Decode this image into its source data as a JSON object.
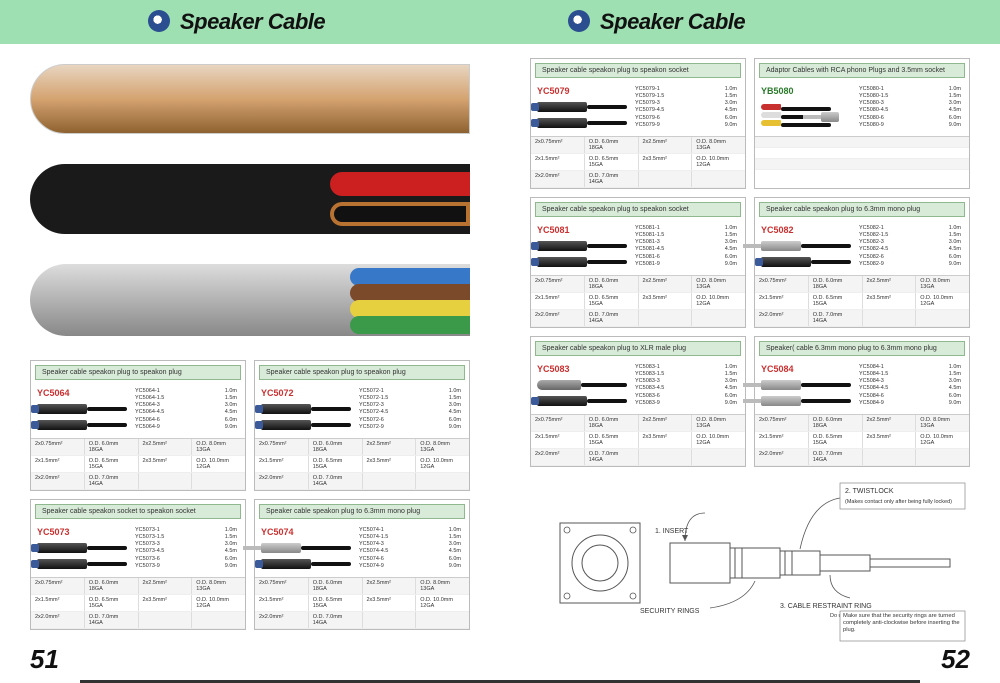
{
  "header_title": "Speaker Cable",
  "page_left_num": "51",
  "page_right_num": "52",
  "colors": {
    "header_bg": "#9fe0b3",
    "card_title_bg": "#d8ebd8",
    "prod_id_red": "#c93030",
    "prod_id_green": "#2a7a2a"
  },
  "spec_rows_full": [
    [
      [
        "2x0.75mm²",
        "O.D. 6.0mm 18GA"
      ],
      [
        "2x2.5mm²",
        "O.D. 8.0mm  13GA"
      ]
    ],
    [
      [
        "2x1.5mm²",
        "O.D. 6.5mm 15GA"
      ],
      [
        "2x3.5mm²",
        "O.D. 10.0mm 12GA"
      ]
    ],
    [
      [
        "2x2.0mm²",
        "O.D. 7.0mm 14GA"
      ],
      [
        "",
        ""
      ]
    ]
  ],
  "left_cards": [
    {
      "title": "Speaker cable speakon plug to speakon plug",
      "id": "YC5064",
      "img": "spk2spk",
      "variants": [
        [
          "YC5064-1",
          "1.0m"
        ],
        [
          "YC5064-1.5",
          "1.5m"
        ],
        [
          "YC5064-3",
          "3.0m"
        ],
        [
          "YC5064-4.5",
          "4.5m"
        ],
        [
          "YC5064-6",
          "6.0m"
        ],
        [
          "YC5064-9",
          "9.0m"
        ]
      ]
    },
    {
      "title": "Speaker cable speakon plug to speakon plug",
      "id": "YC5072",
      "img": "spk2spk",
      "variants": [
        [
          "YC5072-1",
          "1.0m"
        ],
        [
          "YC5072-1.5",
          "1.5m"
        ],
        [
          "YC5072-3",
          "3.0m"
        ],
        [
          "YC5072-4.5",
          "4.5m"
        ],
        [
          "YC5072-6",
          "6.0m"
        ],
        [
          "YC5072-9",
          "9.0m"
        ]
      ]
    },
    {
      "title": "Speaker cable speakon socket to speakon socket",
      "id": "YC5073",
      "img": "spk2spk",
      "variants": [
        [
          "YC5073-1",
          "1.0m"
        ],
        [
          "YC5073-1.5",
          "1.5m"
        ],
        [
          "YC5073-3",
          "3.0m"
        ],
        [
          "YC5073-4.5",
          "4.5m"
        ],
        [
          "YC5073-6",
          "6.0m"
        ],
        [
          "YC5073-9",
          "9.0m"
        ]
      ]
    },
    {
      "title": "Speaker cable speakon plug to 6.3mm mono plug",
      "id": "YC5074",
      "img": "spk2jack",
      "variants": [
        [
          "YC5074-1",
          "1.0m"
        ],
        [
          "YC5074-1.5",
          "1.5m"
        ],
        [
          "YC5074-3",
          "3.0m"
        ],
        [
          "YC5074-4.5",
          "4.5m"
        ],
        [
          "YC5074-6",
          "6.0m"
        ],
        [
          "YC5074-9",
          "9.0m"
        ]
      ]
    }
  ],
  "right_cards": [
    {
      "title": "Speaker cable speakon plug to speakon socket",
      "id": "YC5079",
      "img": "spk2spk",
      "variants": [
        [
          "YC5079-1",
          "1.0m"
        ],
        [
          "YC5079-1.5",
          "1.5m"
        ],
        [
          "YC5079-3",
          "3.0m"
        ],
        [
          "YC5079-4.5",
          "4.5m"
        ],
        [
          "YC5079-6",
          "6.0m"
        ],
        [
          "YC5079-9",
          "9.0m"
        ]
      ]
    },
    {
      "title": "Adaptor Cables with RCA phono Plugs and 3.5mm socket",
      "id": "YB5080",
      "id_class": "yb",
      "img": "rca",
      "variants": [
        [
          "YC5080-1",
          "1.0m"
        ],
        [
          "YC5080-1.5",
          "1.5m"
        ],
        [
          "YC5080-3",
          "3.0m"
        ],
        [
          "YC5080-4.5",
          "4.5m"
        ],
        [
          "YC5080-6",
          "6.0m"
        ],
        [
          "YC5080-9",
          "9.0m"
        ]
      ]
    },
    {
      "title": "Speaker cable speakon plug to speakon socket",
      "id": "YC5081",
      "img": "spk2spk",
      "variants": [
        [
          "YC5081-1",
          "1.0m"
        ],
        [
          "YC5081-1.5",
          "1.5m"
        ],
        [
          "YC5081-3",
          "3.0m"
        ],
        [
          "YC5081-4.5",
          "4.5m"
        ],
        [
          "YC5081-6",
          "6.0m"
        ],
        [
          "YC5081-9",
          "9.0m"
        ]
      ]
    },
    {
      "title": "Speaker cable speakon plug to 6.3mm mono plug",
      "id": "YC5082",
      "img": "spk2jack",
      "variants": [
        [
          "YC5082-1",
          "1.0m"
        ],
        [
          "YC5082-1.5",
          "1.5m"
        ],
        [
          "YC5082-3",
          "3.0m"
        ],
        [
          "YC5082-4.5",
          "4.5m"
        ],
        [
          "YC5082-6",
          "6.0m"
        ],
        [
          "YC5082-9",
          "9.0m"
        ]
      ]
    },
    {
      "title": "Speaker cable speakon plug to XLR male plug",
      "id": "YC5083",
      "img": "spk2xlr",
      "variants": [
        [
          "YC5083-1",
          "1.0m"
        ],
        [
          "YC5083-1.5",
          "1.5m"
        ],
        [
          "YC5083-3",
          "3.0m"
        ],
        [
          "YC5083-4.5",
          "4.5m"
        ],
        [
          "YC5083-6",
          "6.0m"
        ],
        [
          "YC5083-9",
          "9.0m"
        ]
      ]
    },
    {
      "title": "Speaker( cable 6.3mm mono plug to 6.3mm mono plug",
      "id": "YC5084",
      "img": "jack2jack",
      "variants": [
        [
          "YC5084-1",
          "1.0m"
        ],
        [
          "YC5084-1.5",
          "1.5m"
        ],
        [
          "YC5084-3",
          "3.0m"
        ],
        [
          "YC5084-4.5",
          "4.5m"
        ],
        [
          "YC5084-6",
          "6.0m"
        ],
        [
          "YC5084-9",
          "9.0m"
        ]
      ]
    }
  ],
  "diagram": {
    "label_insert": "1. INSERT",
    "label_twistlock": "2. TWISTLOCK",
    "twistlock_note": "(Makes contact only after being fully locked)",
    "label_restraint": "3. CABLE RESTRAINT RING",
    "restraint_note": "Do up last",
    "label_security": "SECURITY RINGS",
    "warning": "Make sure that the security rings are turned completely anti-clockwise before inserting the plug."
  }
}
